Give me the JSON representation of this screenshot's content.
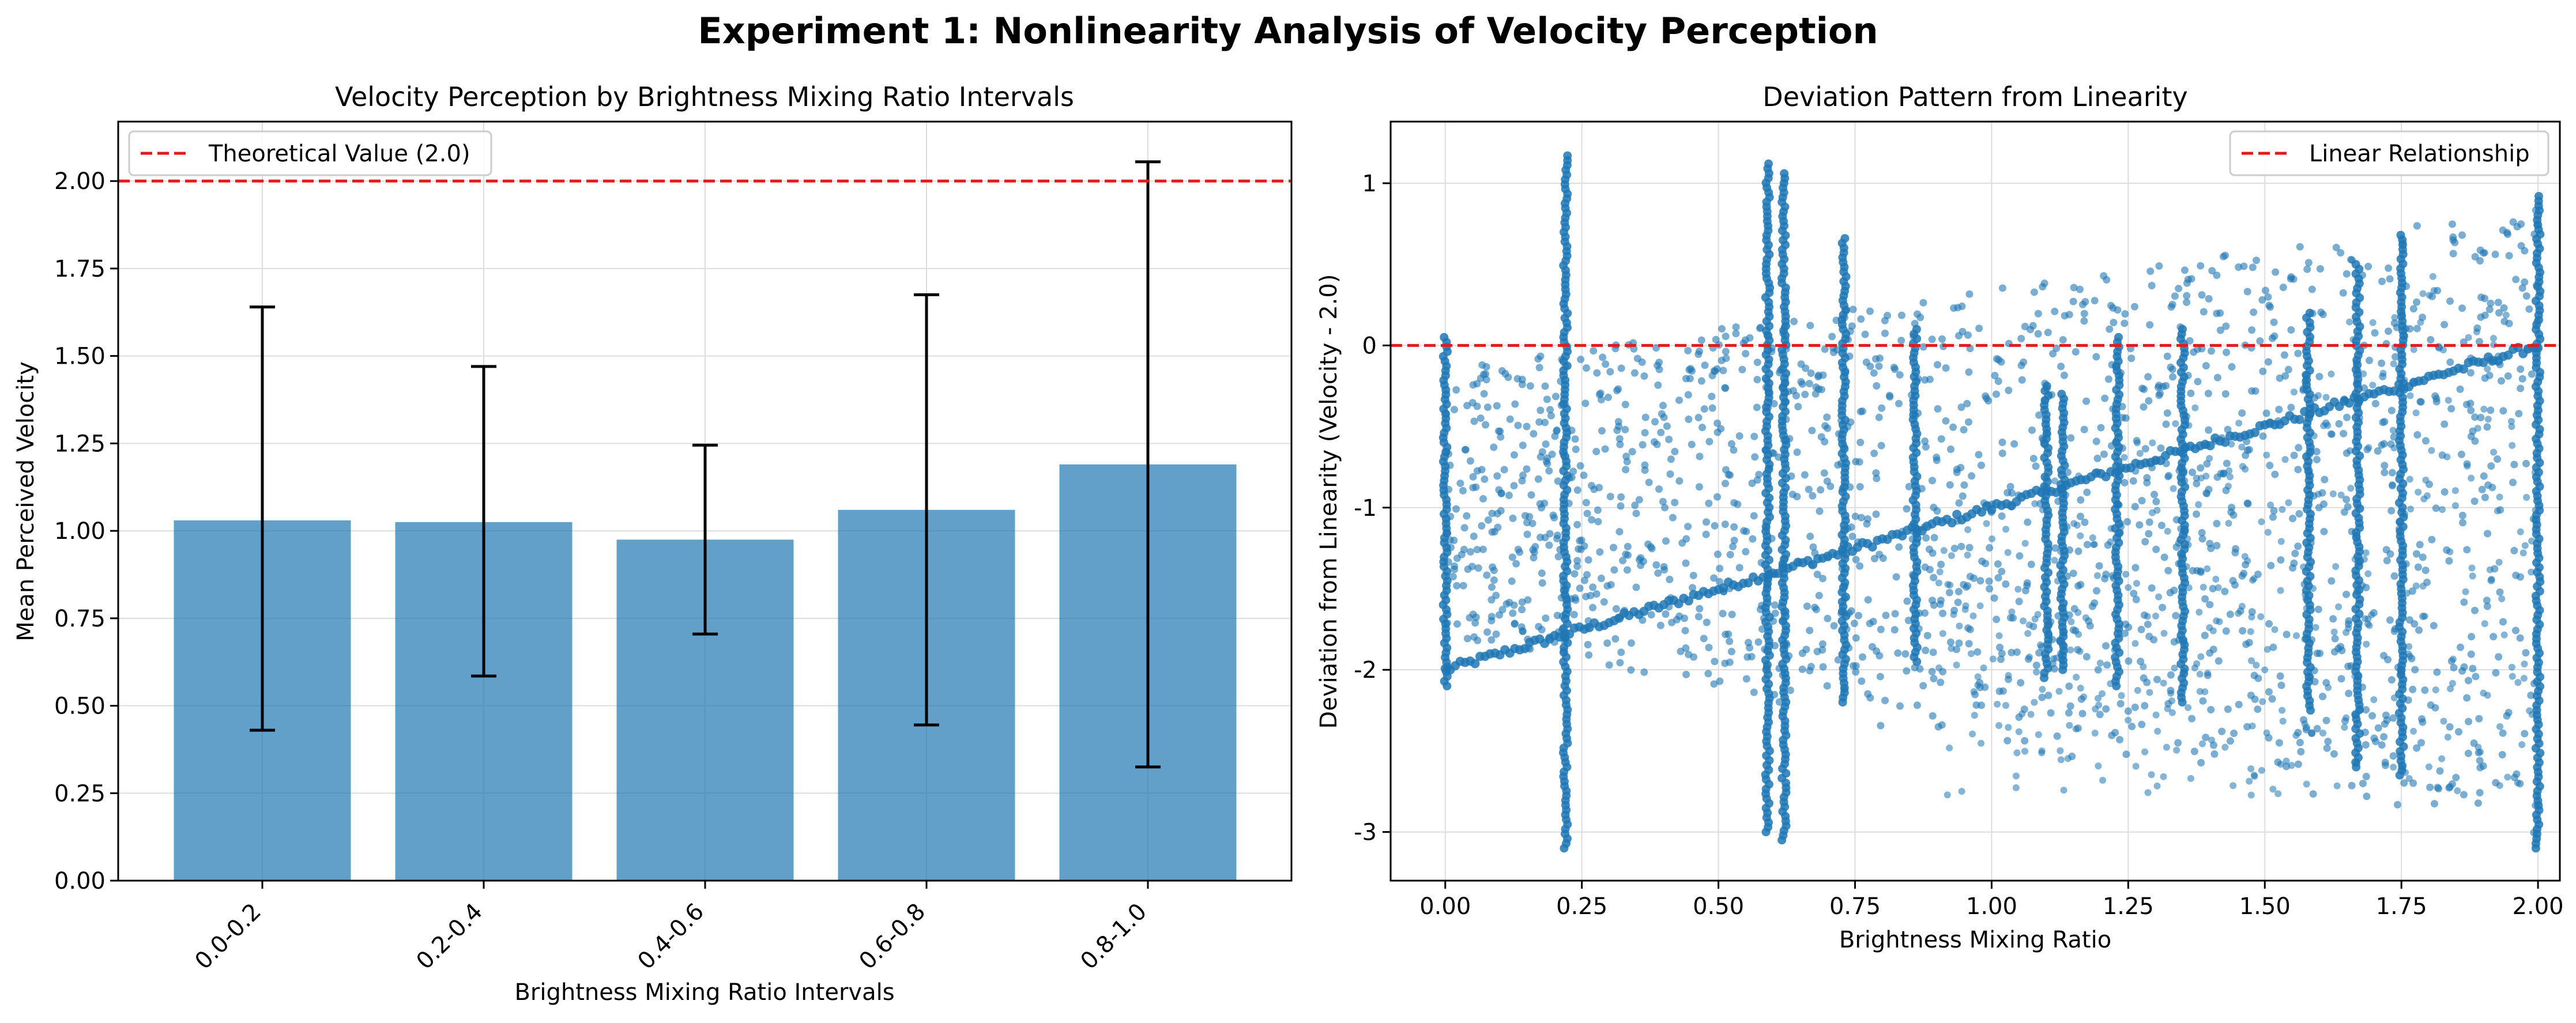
{
  "figure": {
    "suptitle": "Experiment 1: Nonlinearity Analysis of Velocity Perception"
  },
  "chart_data": [
    {
      "type": "bar",
      "title": "Velocity Perception by Brightness Mixing Ratio Intervals",
      "xlabel": "Brightness Mixing Ratio Intervals",
      "ylabel": "Mean Perceived Velocity",
      "categories": [
        "0.0-0.2",
        "0.2-0.4",
        "0.4-0.6",
        "0.6-0.8",
        "0.8-1.0"
      ],
      "values": [
        1.03,
        1.025,
        0.975,
        1.06,
        1.19
      ],
      "error_low": [
        0.43,
        0.585,
        0.705,
        0.445,
        0.325
      ],
      "error_high": [
        1.64,
        1.47,
        1.245,
        1.675,
        2.055
      ],
      "ylim": [
        0,
        2.17
      ],
      "yticks": [
        0.0,
        0.25,
        0.5,
        0.75,
        1.0,
        1.25,
        1.5,
        1.75,
        2.0
      ],
      "ytick_labels": [
        "0.00",
        "0.25",
        "0.50",
        "0.75",
        "1.00",
        "1.25",
        "1.50",
        "1.75",
        "2.00"
      ],
      "reference_line": {
        "y": 2.0,
        "label": "Theoretical Value (2.0)",
        "color": "#e31a1c",
        "style": "dashed"
      },
      "bar_color": "#1f77b4",
      "grid": true,
      "legend_position": "top-left"
    },
    {
      "type": "scatter",
      "title": "Deviation Pattern from Linearity",
      "xlabel": "Brightness Mixing Ratio",
      "ylabel": "Deviation from Linearity (Velocity - 2.0)",
      "xlim": [
        -0.1,
        2.04
      ],
      "ylim": [
        -3.3,
        1.38
      ],
      "xticks": [
        0.0,
        0.25,
        0.5,
        0.75,
        1.0,
        1.25,
        1.5,
        1.75,
        2.0
      ],
      "xtick_labels": [
        "0.00",
        "0.25",
        "0.50",
        "0.75",
        "1.00",
        "1.25",
        "1.50",
        "1.75",
        "2.00"
      ],
      "yticks": [
        -3,
        -2,
        -1,
        0,
        1
      ],
      "ytick_labels": [
        "-3",
        "-2",
        "-1",
        "0",
        "1"
      ],
      "reference_line": {
        "y": 0,
        "label": "Linear Relationship",
        "color": "#e31a1c",
        "style": "dashed"
      },
      "point_color": "#1f77b4",
      "trend": {
        "x": [
          0.0,
          2.0
        ],
        "y": [
          -2.0,
          0.0
        ]
      },
      "vertical_clusters": [
        {
          "x": 0.0,
          "ymin": -2.1,
          "ymax": 0.05
        },
        {
          "x": 0.22,
          "ymin": -3.1,
          "ymax": 1.17
        },
        {
          "x": 0.59,
          "ymin": -3.0,
          "ymax": 1.12
        },
        {
          "x": 0.62,
          "ymin": -3.05,
          "ymax": 1.06
        },
        {
          "x": 0.73,
          "ymin": -2.2,
          "ymax": 0.66
        },
        {
          "x": 0.86,
          "ymin": -1.95,
          "ymax": 0.1
        },
        {
          "x": 1.1,
          "ymin": -2.05,
          "ymax": -0.25
        },
        {
          "x": 1.13,
          "ymin": -2.0,
          "ymax": -0.3
        },
        {
          "x": 1.23,
          "ymin": -2.1,
          "ymax": 0.05
        },
        {
          "x": 1.35,
          "ymin": -2.2,
          "ymax": 0.1
        },
        {
          "x": 1.58,
          "ymin": -2.25,
          "ymax": 0.2
        },
        {
          "x": 1.67,
          "ymin": -2.6,
          "ymax": 0.5
        },
        {
          "x": 1.75,
          "ymin": -2.65,
          "ymax": 0.68
        },
        {
          "x": 2.0,
          "ymin": -3.1,
          "ymax": 0.92
        }
      ],
      "grid": true,
      "legend_position": "top-right"
    }
  ]
}
